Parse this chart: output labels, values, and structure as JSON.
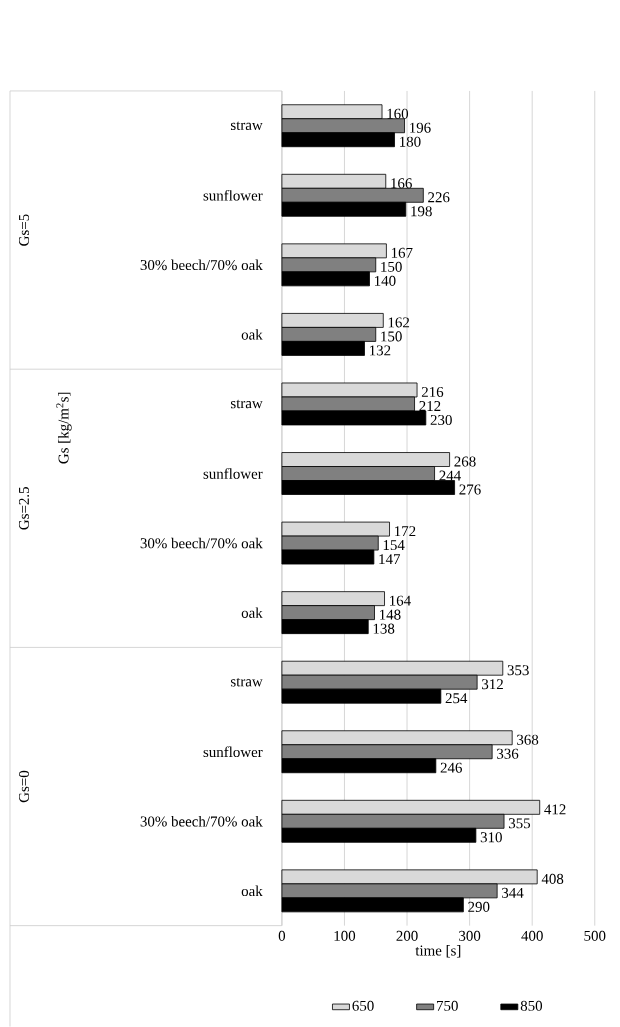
{
  "chart_data": {
    "type": "bar",
    "orientation": "horizontal",
    "categories": [
      "straw",
      "sunflower",
      "30% beech/70% oak",
      "oak",
      "straw",
      "sunflower",
      "30% beech/70% oak",
      "oak",
      "straw",
      "sunflower",
      "30% beech/70% oak",
      "oak"
    ],
    "series": [
      {
        "name": "650",
        "color": "#d9d9d9",
        "values": [
          160,
          166,
          167,
          162,
          216,
          268,
          172,
          164,
          353,
          368,
          412,
          408
        ]
      },
      {
        "name": "750",
        "color": "#808080",
        "values": [
          196,
          226,
          150,
          150,
          212,
          244,
          154,
          148,
          312,
          336,
          355,
          344
        ]
      },
      {
        "name": "850",
        "color": "#000000",
        "values": [
          180,
          198,
          140,
          132,
          230,
          276,
          147,
          138,
          254,
          246,
          310,
          290
        ]
      }
    ],
    "xlabel": "time [s]",
    "ylabel": "Gs [kg/m$^{2}$s]",
    "annotations": [
      "Gs=5",
      "Gs=2.5",
      "Gs=0"
    ],
    "xlim": [
      0,
      500
    ],
    "xticks": [
      0,
      100,
      200,
      300,
      400,
      500
    ],
    "grid": "x",
    "legend": "bottom",
    "data_labels": true
  }
}
